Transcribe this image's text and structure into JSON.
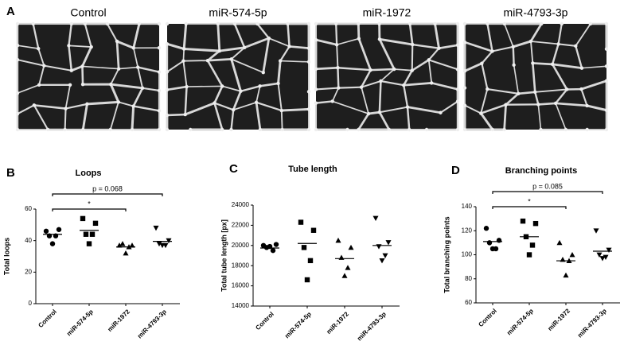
{
  "panel_a": {
    "panel": "A",
    "captions": [
      "Control",
      "miR-574-5p",
      "miR-1972",
      "miR-4793-3p"
    ]
  },
  "chart_data": [
    {
      "type": "strip",
      "panel": "B",
      "title": "Loops",
      "y_label": "Total loops",
      "categories": [
        "Control",
        "miR-574-5p",
        "miR-1972",
        "miR-4793-3p"
      ],
      "markers": [
        "circle",
        "square",
        "triangle",
        "triangle-down"
      ],
      "color": "#000000",
      "values": [
        [
          46,
          47,
          43,
          43,
          38
        ],
        [
          54,
          51,
          44,
          44,
          38
        ],
        [
          37,
          37,
          38,
          36,
          32
        ],
        [
          48,
          40,
          38,
          37,
          37
        ]
      ],
      "means": [
        44,
        46.5,
        36,
        39.5
      ],
      "ylim": [
        0,
        60
      ],
      "yticks": [
        0,
        20,
        40,
        60
      ],
      "annotations": [
        {
          "text": "p = 0.068",
          "from": 0,
          "to": 3
        },
        {
          "text": "*",
          "from": 0,
          "to": 2
        }
      ]
    },
    {
      "type": "strip",
      "panel": "C",
      "title": "Tube length",
      "y_label": "Total tube length [px]",
      "categories": [
        "Control",
        "miR-574-5p",
        "miR-1972",
        "miR-4793-3p"
      ],
      "markers": [
        "circle",
        "square",
        "triangle",
        "triangle-down"
      ],
      "color": "#000000",
      "values": [
        [
          20000,
          20100,
          19800,
          19500,
          19900
        ],
        [
          22300,
          21500,
          19800,
          18500,
          16600
        ],
        [
          20500,
          19800,
          18800,
          17800,
          17000
        ],
        [
          22700,
          20300,
          19900,
          19000,
          18500
        ]
      ],
      "means": [
        19750,
        20200,
        18700,
        20000
      ],
      "ylim": [
        14000,
        24000
      ],
      "yticks": [
        14000,
        16000,
        18000,
        20000,
        22000,
        24000
      ],
      "annotations": []
    },
    {
      "type": "strip",
      "panel": "D",
      "title": "Branching points",
      "y_label": "Total branching points",
      "categories": [
        "Control",
        "miR-574-5p",
        "miR-1972",
        "miR-4793-3p"
      ],
      "markers": [
        "circle",
        "square",
        "triangle",
        "triangle-down"
      ],
      "color": "#000000",
      "values": [
        [
          122,
          112,
          110,
          105,
          105
        ],
        [
          128,
          126,
          115,
          108,
          100
        ],
        [
          110,
          100,
          96,
          95,
          83
        ],
        [
          120,
          104,
          100,
          98,
          97
        ]
      ],
      "means": [
        111,
        115,
        95,
        103
      ],
      "ylim": [
        60,
        140
      ],
      "yticks": [
        60,
        80,
        100,
        120,
        140
      ],
      "annotations": [
        {
          "text": "p = 0.085",
          "from": 0,
          "to": 3
        },
        {
          "text": "*",
          "from": 0,
          "to": 2
        }
      ]
    }
  ]
}
